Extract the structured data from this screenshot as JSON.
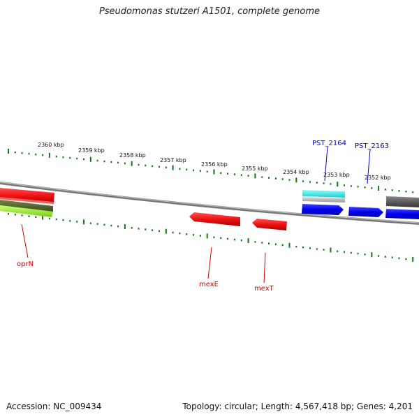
{
  "title": "Pseudomonas stutzeri A1501, complete genome",
  "footer": {
    "accession": "Accession: NC_009434",
    "stats": "Topology: circular; Length: 4,567,418 bp; Genes: 4,201"
  },
  "scale_ticks": [
    {
      "label": "2360 kbp"
    },
    {
      "label": "2359 kbp"
    },
    {
      "label": "2358 kbp"
    },
    {
      "label": "2357 kbp"
    },
    {
      "label": "2356 kbp"
    },
    {
      "label": "2355 kbp"
    },
    {
      "label": "2354 kbp"
    },
    {
      "label": "2353 kbp"
    },
    {
      "label": "2352 kbp"
    }
  ],
  "colors": {
    "forward_red": "#ee1111",
    "red_label": "#cc0000",
    "blue_gene": "#0000ee",
    "blue_label": "#0000cc",
    "cyan_gene": "#22dddd",
    "gray_gene": "#555555",
    "lime_gene": "#99ee33",
    "olive_gene": "#556b2f",
    "tick_green": "#117711",
    "backbone": "#888888"
  },
  "gene_labels": [
    {
      "name": "oprN",
      "color": "red"
    },
    {
      "name": "mexE",
      "color": "red"
    },
    {
      "name": "mexT",
      "color": "red"
    },
    {
      "name": "PST_2164",
      "color": "blue"
    },
    {
      "name": "PST_2163",
      "color": "blue"
    }
  ]
}
